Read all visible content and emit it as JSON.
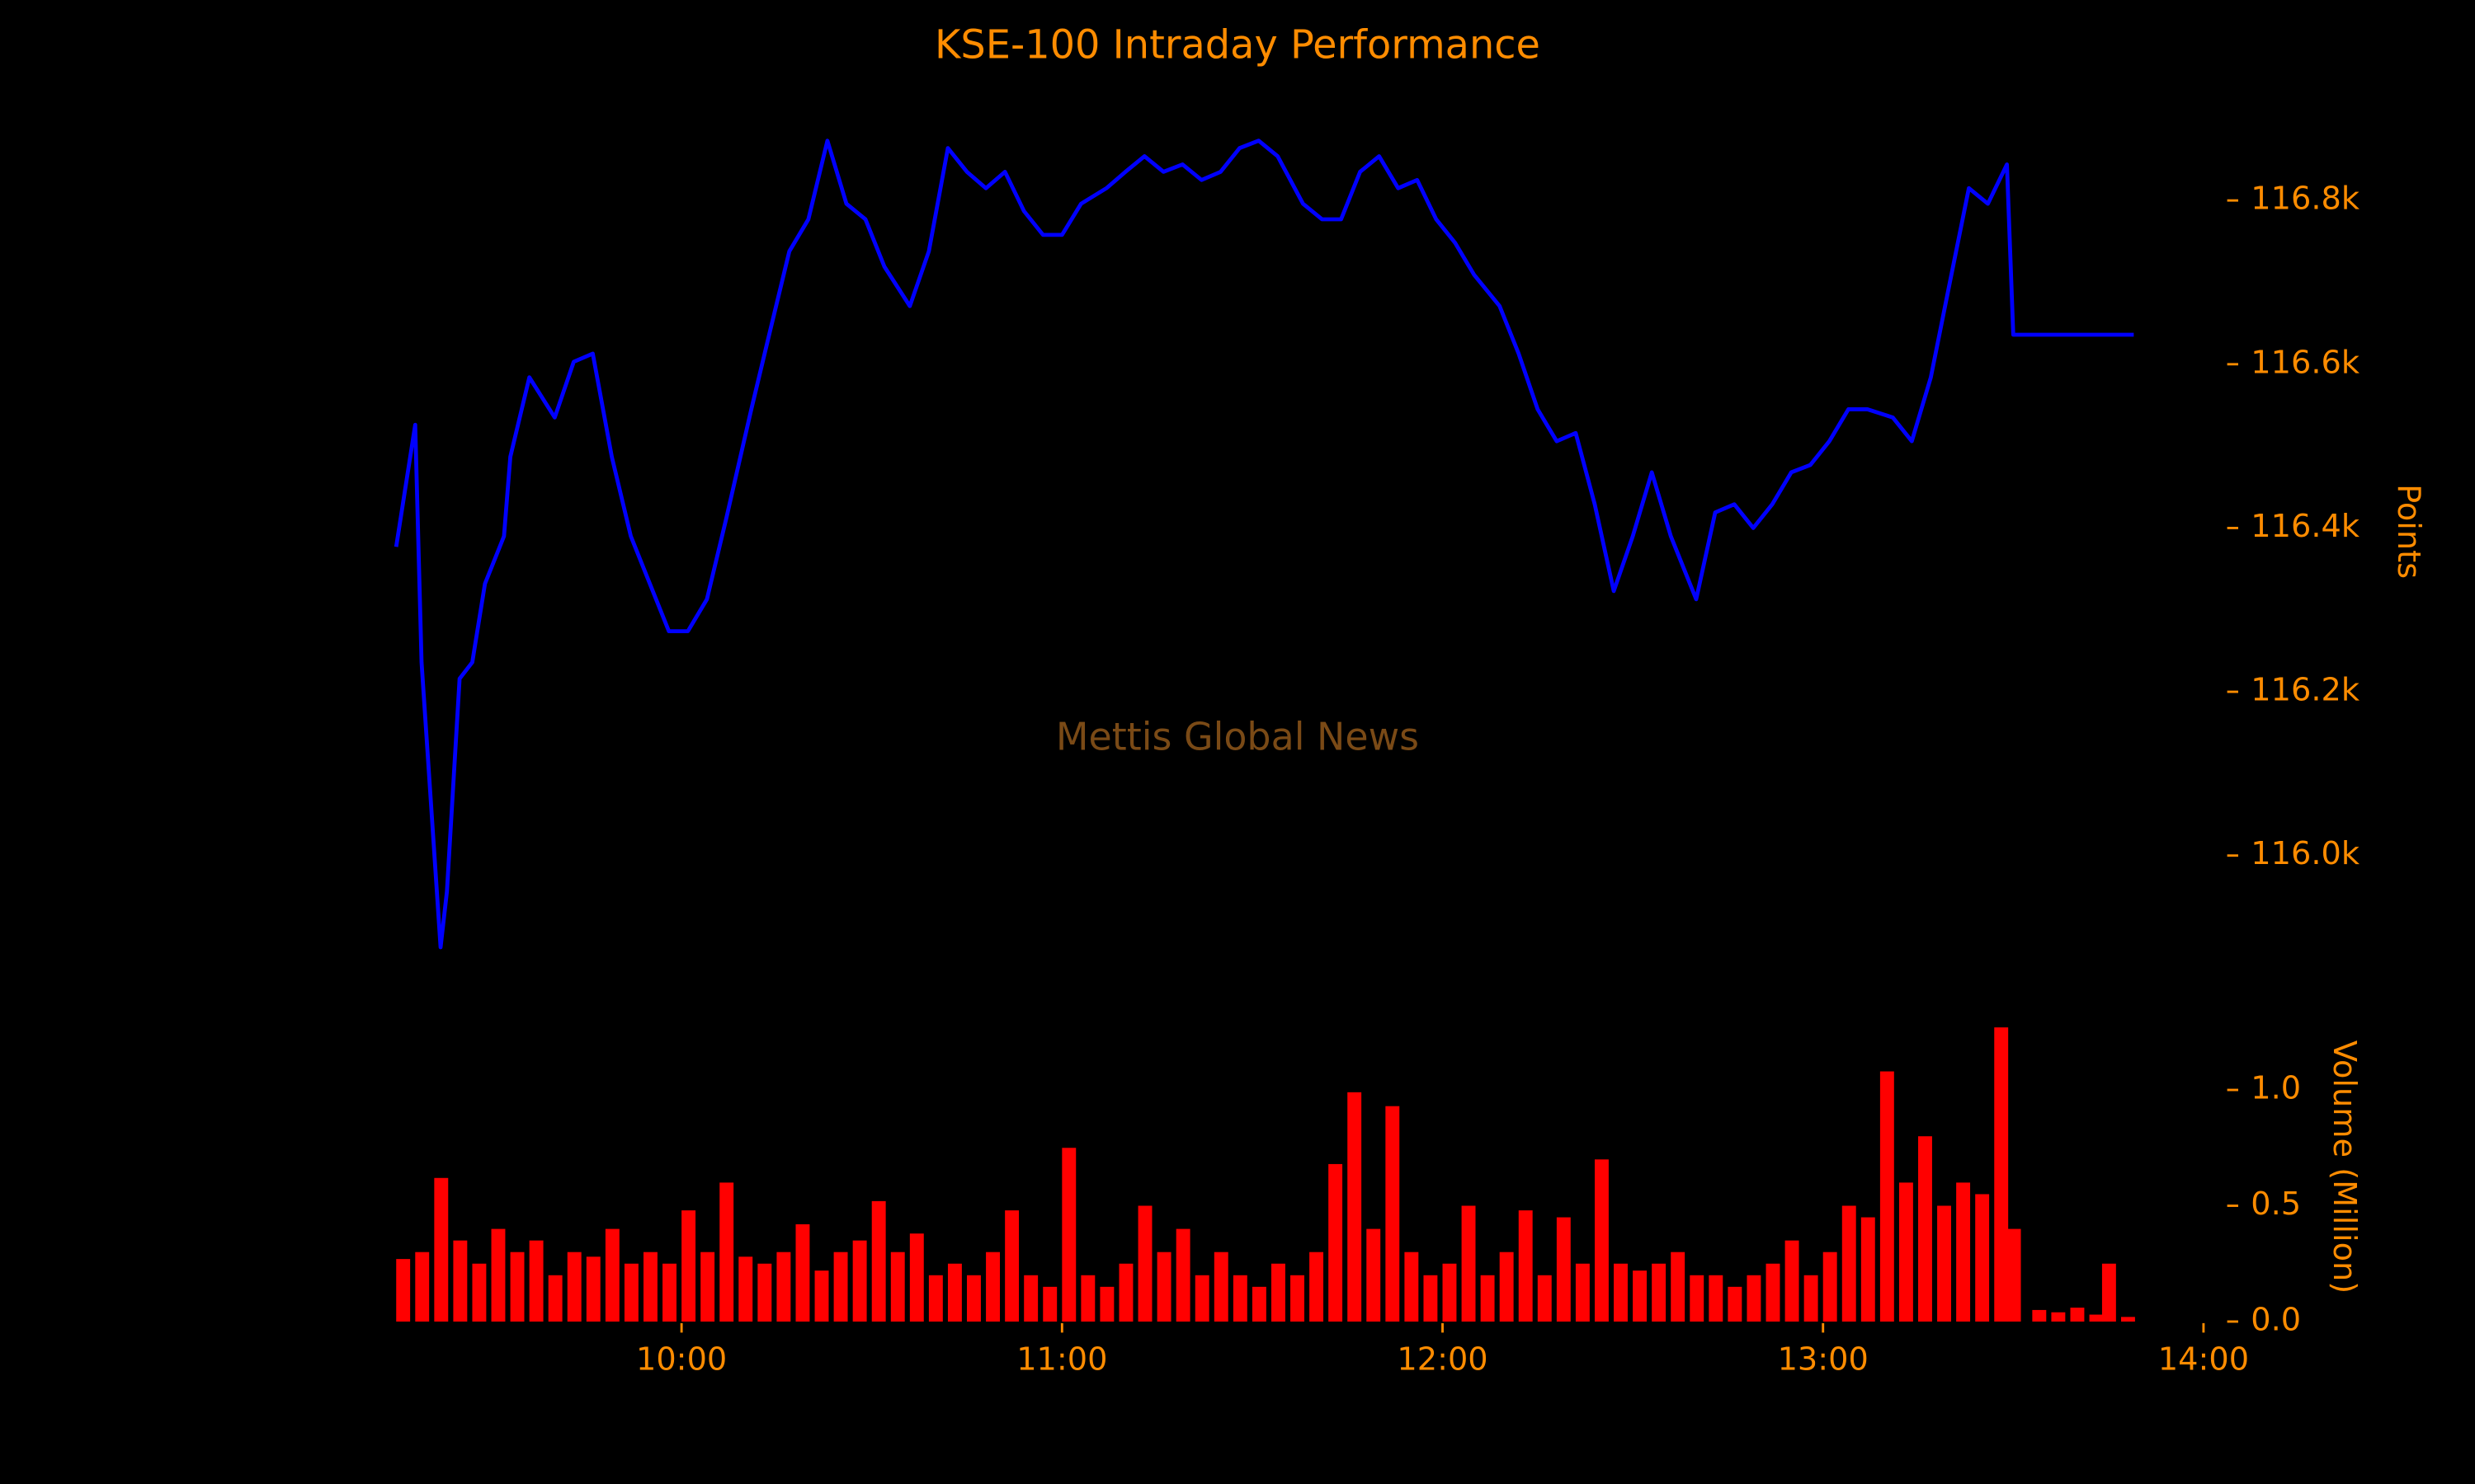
{
  "chart_data": [
    {
      "type": "line",
      "title": "KSE-100 Intraday Performance",
      "annotation": "Mettis Global News",
      "ylabel": "Points",
      "color": "#0000ff",
      "x": [
        555,
        558,
        559,
        562,
        563,
        565,
        567,
        569,
        572,
        573,
        576,
        580,
        583,
        586,
        589,
        592,
        595,
        598,
        601,
        604,
        607,
        611,
        614,
        617,
        620,
        623,
        626,
        629,
        632,
        636,
        639,
        642,
        645,
        648,
        651,
        654,
        657,
        660,
        663,
        667,
        670,
        673,
        676,
        679,
        682,
        685,
        688,
        691,
        694,
        698,
        701,
        704,
        707,
        710,
        713,
        716,
        719,
        722,
        725,
        729,
        732,
        735,
        738,
        741,
        744,
        747,
        750,
        753,
        756,
        760,
        763,
        766,
        769,
        772,
        775,
        778,
        781,
        784,
        787,
        791,
        794,
        797,
        800,
        803,
        806,
        809,
        810,
        829
      ],
      "values": [
        116377,
        116526,
        116236,
        115888,
        115956,
        116216,
        116236,
        116332,
        116390,
        116487,
        116584,
        116535,
        116603,
        116613,
        116487,
        116390,
        116332,
        116274,
        116274,
        116313,
        116410,
        116545,
        116642,
        116738,
        116777,
        116873,
        116796,
        116777,
        116719,
        116671,
        116738,
        116864,
        116835,
        116815,
        116835,
        116787,
        116758,
        116758,
        116796,
        116815,
        116835,
        116854,
        116835,
        116844,
        116825,
        116835,
        116864,
        116873,
        116854,
        116796,
        116777,
        116777,
        116835,
        116854,
        116815,
        116825,
        116777,
        116748,
        116709,
        116671,
        116613,
        116545,
        116506,
        116516,
        116429,
        116323,
        116390,
        116468,
        116390,
        116313,
        116419,
        116429,
        116400,
        116429,
        116468,
        116477,
        116506,
        116545,
        116545,
        116535,
        116506,
        116584,
        116700,
        116815,
        116796,
        116844,
        116636,
        116636
      ],
      "xlim": [
        555,
        840
      ],
      "ylim": [
        115870,
        116910
      ],
      "yticks": [
        {
          "value": 116000,
          "label": "116.0k"
        },
        {
          "value": 116200,
          "label": "116.2k"
        },
        {
          "value": 116400,
          "label": "116.4k"
        },
        {
          "value": 116600,
          "label": "116.6k"
        },
        {
          "value": 116800,
          "label": "116.8k"
        }
      ]
    },
    {
      "type": "bar",
      "ylabel": "Volume (Million)",
      "color": "#ff0000",
      "x": [
        555,
        558,
        561,
        564,
        567,
        570,
        573,
        576,
        579,
        582,
        585,
        588,
        591,
        594,
        597,
        600,
        603,
        606,
        609,
        612,
        615,
        618,
        621,
        624,
        627,
        630,
        633,
        636,
        639,
        642,
        645,
        648,
        651,
        654,
        657,
        660,
        663,
        666,
        669,
        672,
        675,
        678,
        681,
        684,
        687,
        690,
        693,
        696,
        699,
        702,
        705,
        708,
        711,
        714,
        717,
        720,
        723,
        726,
        729,
        732,
        735,
        738,
        741,
        744,
        747,
        750,
        753,
        756,
        759,
        762,
        765,
        768,
        771,
        774,
        777,
        780,
        783,
        786,
        789,
        792,
        795,
        798,
        801,
        804,
        807,
        809,
        813,
        816,
        819,
        822,
        824,
        827
      ],
      "values": [
        0.27,
        0.3,
        0.62,
        0.35,
        0.25,
        0.4,
        0.3,
        0.35,
        0.2,
        0.3,
        0.28,
        0.4,
        0.25,
        0.3,
        0.25,
        0.48,
        0.3,
        0.6,
        0.28,
        0.25,
        0.3,
        0.42,
        0.22,
        0.3,
        0.35,
        0.52,
        0.3,
        0.38,
        0.2,
        0.25,
        0.2,
        0.3,
        0.48,
        0.2,
        0.15,
        0.75,
        0.2,
        0.15,
        0.25,
        0.5,
        0.3,
        0.4,
        0.2,
        0.3,
        0.2,
        0.15,
        0.25,
        0.2,
        0.3,
        0.68,
        0.99,
        0.4,
        0.93,
        0.3,
        0.2,
        0.25,
        0.5,
        0.2,
        0.3,
        0.48,
        0.2,
        0.45,
        0.25,
        0.7,
        0.25,
        0.22,
        0.25,
        0.3,
        0.2,
        0.2,
        0.15,
        0.2,
        0.25,
        0.35,
        0.2,
        0.3,
        0.5,
        0.45,
        1.08,
        0.6,
        0.8,
        0.5,
        0.6,
        0.55,
        1.27,
        0.4,
        0.05,
        0.04,
        0.06,
        0.03,
        0.25,
        0.02
      ],
      "xlim": [
        555,
        840
      ],
      "ylim": [
        0,
        1.28
      ],
      "yticks": [
        {
          "value": 0,
          "label": "0.0"
        },
        0.5,
        {
          "value": 1,
          "label": "1.0"
        }
      ],
      "xticks": [
        {
          "value": 600,
          "label": "10:00"
        },
        {
          "value": 660,
          "label": "11:00"
        },
        {
          "value": 720,
          "label": "12:00"
        },
        {
          "value": 780,
          "label": "13:00"
        },
        {
          "value": 840,
          "label": "14:00"
        }
      ]
    }
  ]
}
